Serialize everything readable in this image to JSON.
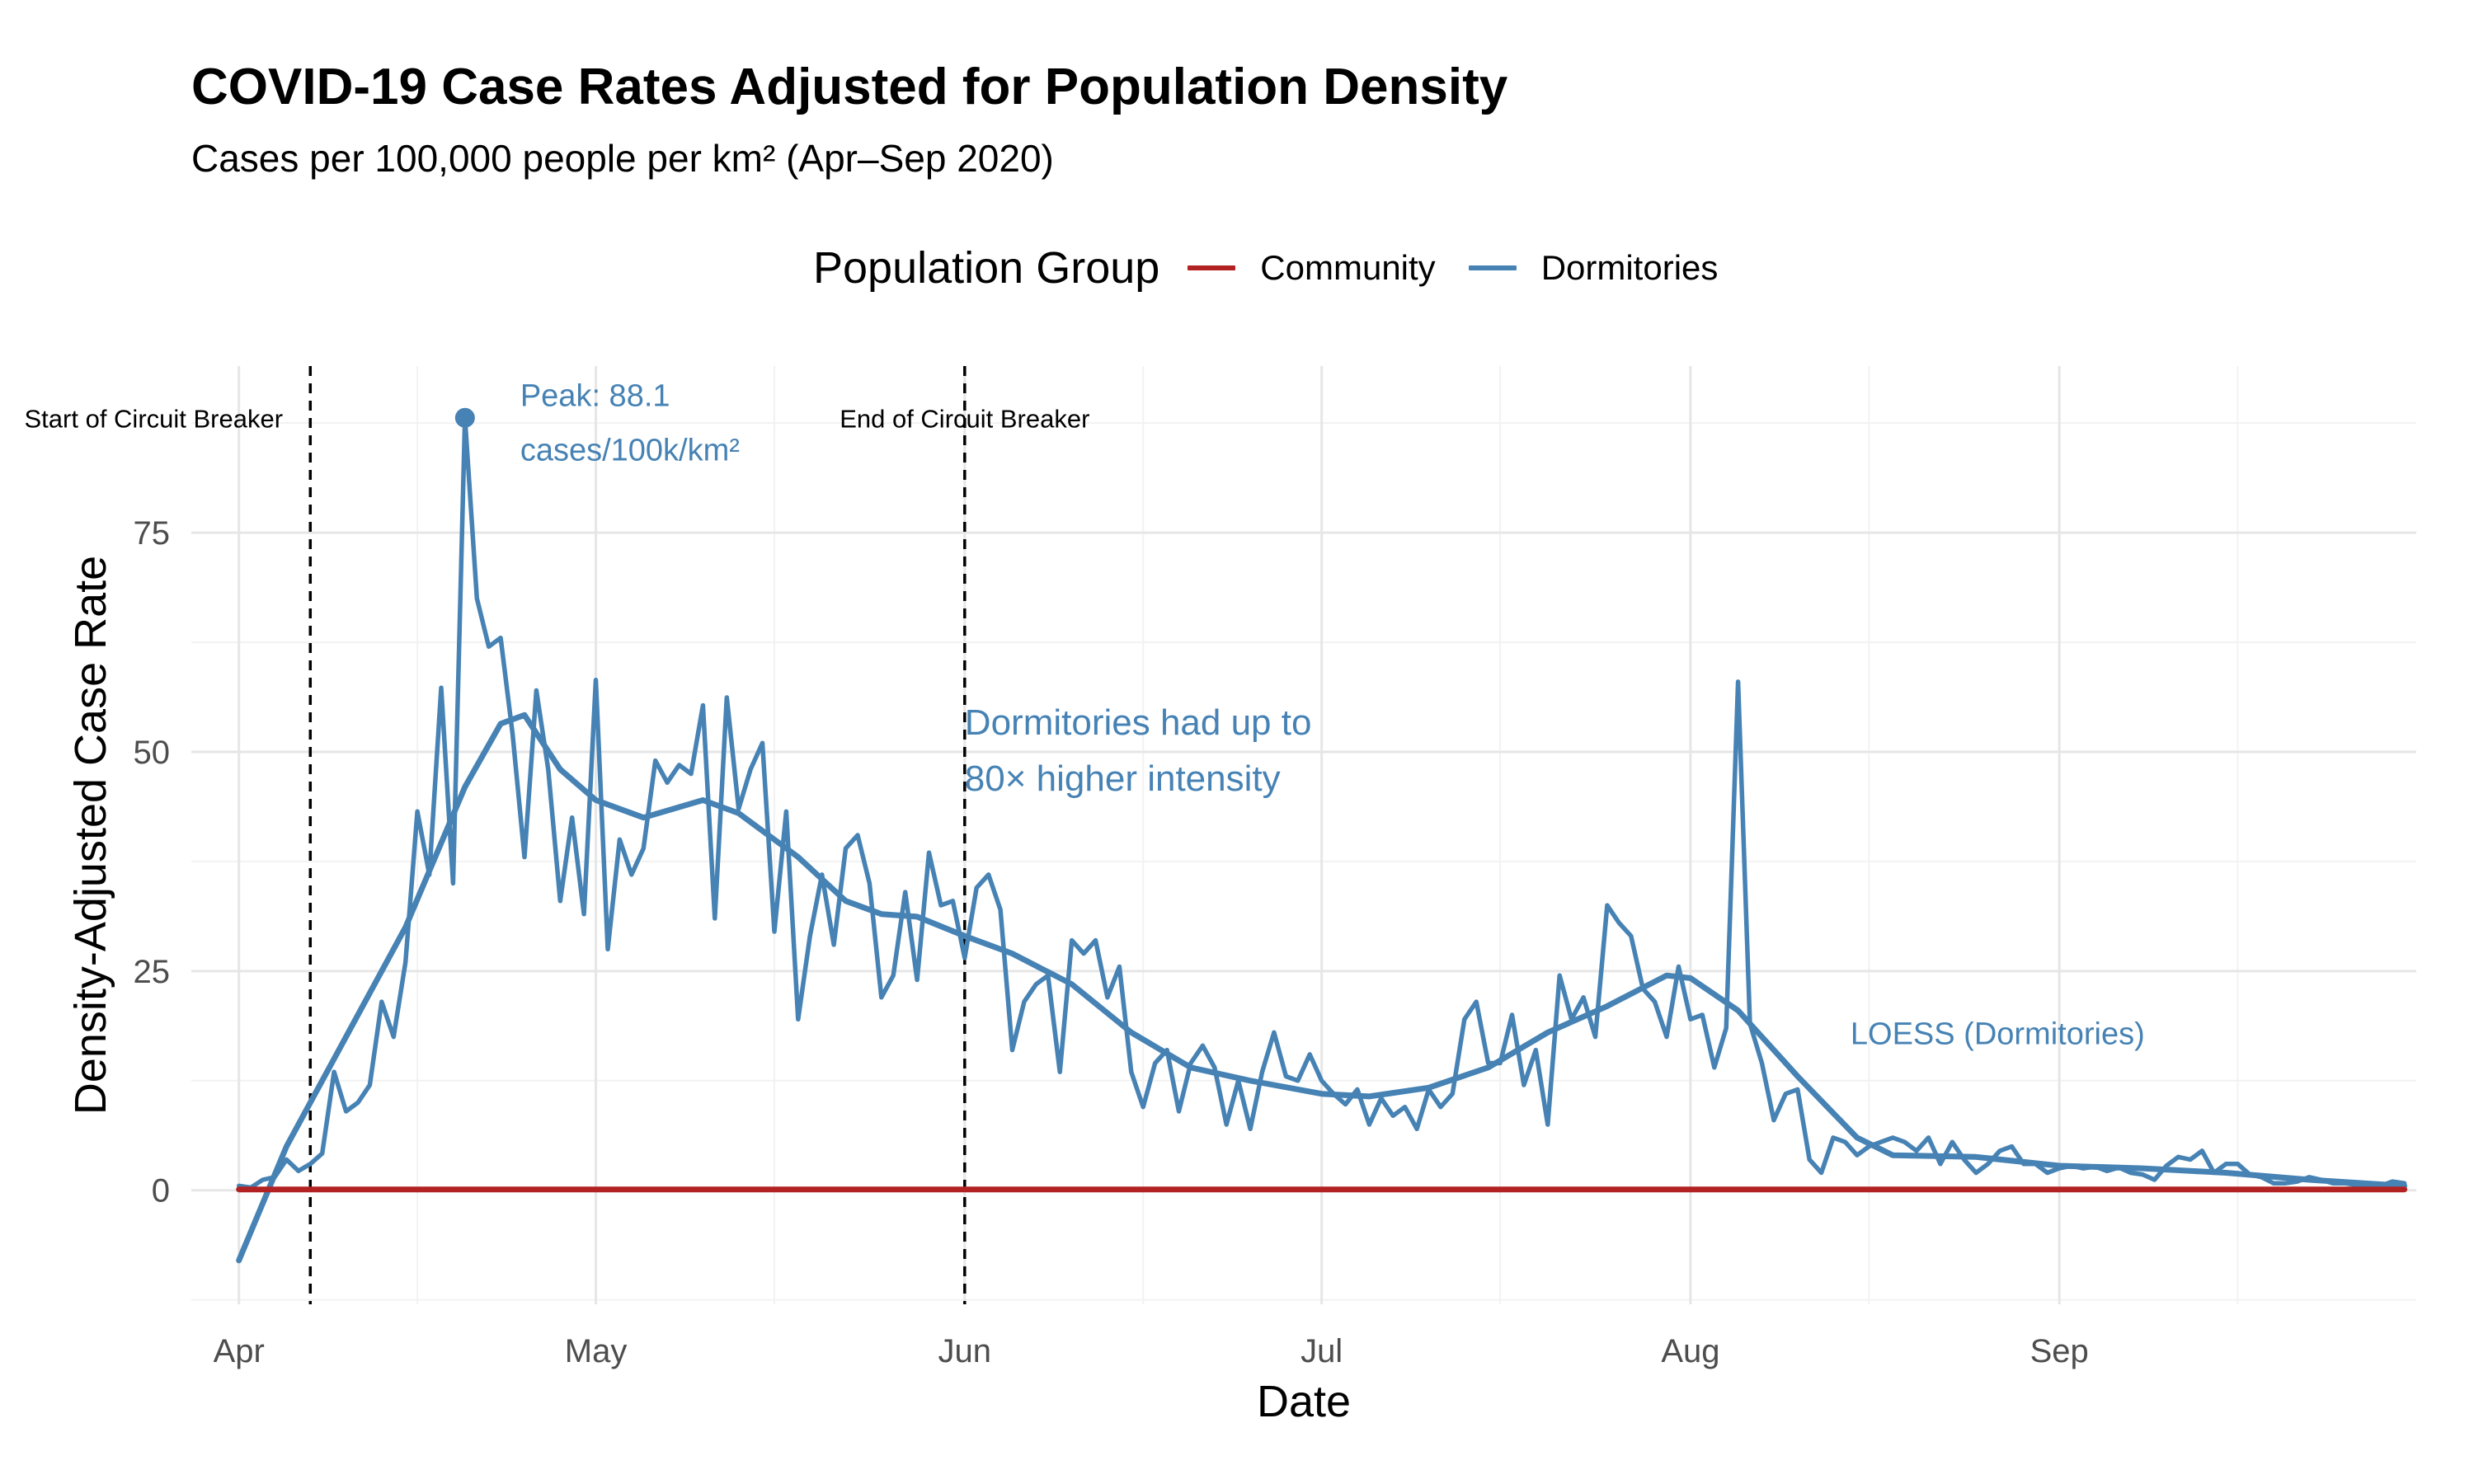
{
  "title": "COVID-19 Case Rates Adjusted for Population Density",
  "subtitle": "Cases per 100,000 people per km² (Apr–Sep 2020)",
  "legend": {
    "title": "Population Group",
    "items": [
      {
        "label": "Community",
        "color": "#B22222"
      },
      {
        "label": "Dormitories",
        "color": "#4682B4"
      }
    ]
  },
  "chart_data": {
    "type": "line",
    "title": "COVID-19 Case Rates Adjusted for Population Density",
    "subtitle": "Cases per 100,000 people per km² (Apr–Sep 2020)",
    "xlabel": "Date",
    "ylabel": "Density-Adjusted Case Rate",
    "xlim": [
      "2020-03-28",
      "2020-10-01"
    ],
    "ylim": [
      -13,
      94
    ],
    "x_ticks": [
      {
        "date": "2020-04-01",
        "label": "Apr"
      },
      {
        "date": "2020-05-01",
        "label": "May"
      },
      {
        "date": "2020-06-01",
        "label": "Jun"
      },
      {
        "date": "2020-07-01",
        "label": "Jul"
      },
      {
        "date": "2020-08-01",
        "label": "Aug"
      },
      {
        "date": "2020-09-01",
        "label": "Sep"
      }
    ],
    "y_ticks": [
      0,
      25,
      50,
      75
    ],
    "grid": true,
    "legend_position": "top",
    "series": [
      {
        "name": "Community",
        "color": "#B22222",
        "points": [
          [
            "2020-04-01",
            0.1
          ],
          [
            "2020-09-30",
            0.1
          ]
        ]
      },
      {
        "name": "Dormitories",
        "color": "#4682B4",
        "points": [
          [
            "2020-04-01",
            0.5
          ],
          [
            "2020-04-02",
            0.3
          ],
          [
            "2020-04-03",
            1.2
          ],
          [
            "2020-04-04",
            1.5
          ],
          [
            "2020-04-05",
            3.5
          ],
          [
            "2020-04-06",
            2.2
          ],
          [
            "2020-04-07",
            3.0
          ],
          [
            "2020-04-08",
            4.2
          ],
          [
            "2020-04-09",
            13.5
          ],
          [
            "2020-04-10",
            9.0
          ],
          [
            "2020-04-11",
            10.0
          ],
          [
            "2020-04-12",
            12.0
          ],
          [
            "2020-04-13",
            21.5
          ],
          [
            "2020-04-14",
            17.5
          ],
          [
            "2020-04-15",
            26.0
          ],
          [
            "2020-04-16",
            43.2
          ],
          [
            "2020-04-17",
            36.0
          ],
          [
            "2020-04-18",
            57.3
          ],
          [
            "2020-04-19",
            35.0
          ],
          [
            "2020-04-20",
            88.1
          ],
          [
            "2020-04-21",
            67.5
          ],
          [
            "2020-04-22",
            62.0
          ],
          [
            "2020-04-23",
            63.0
          ],
          [
            "2020-04-24",
            52.0
          ],
          [
            "2020-04-25",
            38.0
          ],
          [
            "2020-04-26",
            57.0
          ],
          [
            "2020-04-27",
            48.0
          ],
          [
            "2020-04-28",
            33.0
          ],
          [
            "2020-04-29",
            42.5
          ],
          [
            "2020-04-30",
            31.5
          ],
          [
            "2020-05-01",
            58.2
          ],
          [
            "2020-05-02",
            27.5
          ],
          [
            "2020-05-03",
            40.0
          ],
          [
            "2020-05-04",
            36.0
          ],
          [
            "2020-05-05",
            39.0
          ],
          [
            "2020-05-06",
            49.0
          ],
          [
            "2020-05-07",
            46.5
          ],
          [
            "2020-05-08",
            48.5
          ],
          [
            "2020-05-09",
            47.5
          ],
          [
            "2020-05-10",
            55.3
          ],
          [
            "2020-05-11",
            31.0
          ],
          [
            "2020-05-12",
            56.2
          ],
          [
            "2020-05-13",
            43.5
          ],
          [
            "2020-05-14",
            48.0
          ],
          [
            "2020-05-15",
            51.0
          ],
          [
            "2020-05-16",
            29.5
          ],
          [
            "2020-05-17",
            43.2
          ],
          [
            "2020-05-18",
            19.5
          ],
          [
            "2020-05-19",
            29.0
          ],
          [
            "2020-05-20",
            36.0
          ],
          [
            "2020-05-21",
            28.0
          ],
          [
            "2020-05-22",
            39.0
          ],
          [
            "2020-05-23",
            40.5
          ],
          [
            "2020-05-24",
            35.0
          ],
          [
            "2020-05-25",
            22.0
          ],
          [
            "2020-05-26",
            24.5
          ],
          [
            "2020-05-27",
            34.0
          ],
          [
            "2020-05-28",
            24.0
          ],
          [
            "2020-05-29",
            38.5
          ],
          [
            "2020-05-30",
            32.5
          ],
          [
            "2020-05-31",
            33.0
          ],
          [
            "2020-06-01",
            26.5
          ],
          [
            "2020-06-02",
            34.5
          ],
          [
            "2020-06-03",
            36.0
          ],
          [
            "2020-06-04",
            32.0
          ],
          [
            "2020-06-05",
            16.0
          ],
          [
            "2020-06-06",
            21.5
          ],
          [
            "2020-06-07",
            23.5
          ],
          [
            "2020-06-08",
            24.5
          ],
          [
            "2020-06-09",
            13.5
          ],
          [
            "2020-06-10",
            28.5
          ],
          [
            "2020-06-11",
            27.0
          ],
          [
            "2020-06-12",
            28.5
          ],
          [
            "2020-06-13",
            22.0
          ],
          [
            "2020-06-14",
            25.5
          ],
          [
            "2020-06-15",
            13.5
          ],
          [
            "2020-06-16",
            9.5
          ],
          [
            "2020-06-17",
            14.5
          ],
          [
            "2020-06-18",
            16.0
          ],
          [
            "2020-06-19",
            9.0
          ],
          [
            "2020-06-20",
            14.5
          ],
          [
            "2020-06-21",
            16.5
          ],
          [
            "2020-06-22",
            14.0
          ],
          [
            "2020-06-23",
            7.5
          ],
          [
            "2020-06-24",
            12.5
          ],
          [
            "2020-06-25",
            7.0
          ],
          [
            "2020-06-26",
            13.5
          ],
          [
            "2020-06-27",
            18.0
          ],
          [
            "2020-06-28",
            13.0
          ],
          [
            "2020-06-29",
            12.5
          ],
          [
            "2020-06-30",
            15.5
          ],
          [
            "2020-07-01",
            12.5
          ],
          [
            "2020-07-02",
            11.0
          ],
          [
            "2020-07-03",
            9.8
          ],
          [
            "2020-07-04",
            11.5
          ],
          [
            "2020-07-05",
            7.5
          ],
          [
            "2020-07-06",
            10.5
          ],
          [
            "2020-07-07",
            8.5
          ],
          [
            "2020-07-08",
            9.5
          ],
          [
            "2020-07-09",
            7.0
          ],
          [
            "2020-07-10",
            11.5
          ],
          [
            "2020-07-11",
            9.5
          ],
          [
            "2020-07-12",
            11.0
          ],
          [
            "2020-07-13",
            19.5
          ],
          [
            "2020-07-14",
            21.5
          ],
          [
            "2020-07-15",
            14.5
          ],
          [
            "2020-07-16",
            14.5
          ],
          [
            "2020-07-17",
            20.0
          ],
          [
            "2020-07-18",
            12.0
          ],
          [
            "2020-07-19",
            16.0
          ],
          [
            "2020-07-20",
            7.5
          ],
          [
            "2020-07-21",
            24.5
          ],
          [
            "2020-07-22",
            19.5
          ],
          [
            "2020-07-23",
            22.0
          ],
          [
            "2020-07-24",
            17.5
          ],
          [
            "2020-07-25",
            32.5
          ],
          [
            "2020-07-26",
            30.5
          ],
          [
            "2020-07-27",
            29.0
          ],
          [
            "2020-07-28",
            23.0
          ],
          [
            "2020-07-29",
            21.5
          ],
          [
            "2020-07-30",
            17.5
          ],
          [
            "2020-07-31",
            25.5
          ],
          [
            "2020-08-01",
            19.5
          ],
          [
            "2020-08-02",
            20.0
          ],
          [
            "2020-08-03",
            14.0
          ],
          [
            "2020-08-04",
            18.5
          ],
          [
            "2020-08-05",
            58.0
          ],
          [
            "2020-08-06",
            19.0
          ],
          [
            "2020-08-07",
            14.5
          ],
          [
            "2020-08-08",
            8.0
          ],
          [
            "2020-08-09",
            11.0
          ],
          [
            "2020-08-10",
            11.5
          ],
          [
            "2020-08-11",
            3.5
          ],
          [
            "2020-08-12",
            2.0
          ],
          [
            "2020-08-13",
            6.0
          ],
          [
            "2020-08-14",
            5.5
          ],
          [
            "2020-08-15",
            4.0
          ],
          [
            "2020-08-16",
            5.0
          ],
          [
            "2020-08-17",
            5.5
          ],
          [
            "2020-08-18",
            6.0
          ],
          [
            "2020-08-19",
            5.5
          ],
          [
            "2020-08-20",
            4.5
          ],
          [
            "2020-08-21",
            6.0
          ],
          [
            "2020-08-22",
            3.0
          ],
          [
            "2020-08-23",
            5.5
          ],
          [
            "2020-08-24",
            3.5
          ],
          [
            "2020-08-25",
            2.0
          ],
          [
            "2020-08-26",
            3.0
          ],
          [
            "2020-08-27",
            4.5
          ],
          [
            "2020-08-28",
            5.0
          ],
          [
            "2020-08-29",
            3.0
          ],
          [
            "2020-08-30",
            3.0
          ],
          [
            "2020-08-31",
            2.0
          ],
          [
            "2020-09-01",
            2.5
          ],
          [
            "2020-09-02",
            2.8
          ],
          [
            "2020-09-03",
            2.5
          ],
          [
            "2020-09-04",
            2.7
          ],
          [
            "2020-09-05",
            2.2
          ],
          [
            "2020-09-06",
            2.6
          ],
          [
            "2020-09-07",
            2.0
          ],
          [
            "2020-09-08",
            1.8
          ],
          [
            "2020-09-09",
            1.2
          ],
          [
            "2020-09-10",
            2.8
          ],
          [
            "2020-09-11",
            3.8
          ],
          [
            "2020-09-12",
            3.5
          ],
          [
            "2020-09-13",
            4.5
          ],
          [
            "2020-09-14",
            2.0
          ],
          [
            "2020-09-15",
            3.0
          ],
          [
            "2020-09-16",
            3.0
          ],
          [
            "2020-09-17",
            1.8
          ],
          [
            "2020-09-18",
            1.5
          ],
          [
            "2020-09-19",
            0.8
          ],
          [
            "2020-09-20",
            0.8
          ],
          [
            "2020-09-21",
            1.0
          ],
          [
            "2020-09-22",
            1.5
          ],
          [
            "2020-09-23",
            1.2
          ],
          [
            "2020-09-24",
            0.8
          ],
          [
            "2020-09-25",
            0.8
          ],
          [
            "2020-09-26",
            0.6
          ],
          [
            "2020-09-27",
            0.5
          ],
          [
            "2020-09-28",
            0.5
          ],
          [
            "2020-09-29",
            1.0
          ],
          [
            "2020-09-30",
            0.8
          ]
        ]
      },
      {
        "name": "LOESS (Dormitories)",
        "color": "#4682B4",
        "points": [
          [
            "2020-04-01",
            -8.0
          ],
          [
            "2020-04-05",
            5.0
          ],
          [
            "2020-04-10",
            17.5
          ],
          [
            "2020-04-15",
            30.0
          ],
          [
            "2020-04-20",
            46.0
          ],
          [
            "2020-04-23",
            53.2
          ],
          [
            "2020-04-25",
            54.2
          ],
          [
            "2020-04-28",
            48.0
          ],
          [
            "2020-05-01",
            44.5
          ],
          [
            "2020-05-05",
            42.5
          ],
          [
            "2020-05-10",
            44.5
          ],
          [
            "2020-05-13",
            43.0
          ],
          [
            "2020-05-18",
            38.0
          ],
          [
            "2020-05-22",
            33.0
          ],
          [
            "2020-05-25",
            31.5
          ],
          [
            "2020-05-28",
            31.2
          ],
          [
            "2020-06-01",
            29.0
          ],
          [
            "2020-06-05",
            27.0
          ],
          [
            "2020-06-10",
            23.5
          ],
          [
            "2020-06-15",
            18.0
          ],
          [
            "2020-06-20",
            14.0
          ],
          [
            "2020-06-25",
            12.5
          ],
          [
            "2020-07-01",
            11.0
          ],
          [
            "2020-07-05",
            10.7
          ],
          [
            "2020-07-10",
            11.7
          ],
          [
            "2020-07-15",
            14.0
          ],
          [
            "2020-07-20",
            18.0
          ],
          [
            "2020-07-25",
            21.0
          ],
          [
            "2020-07-30",
            24.5
          ],
          [
            "2020-08-01",
            24.2
          ],
          [
            "2020-08-05",
            20.5
          ],
          [
            "2020-08-10",
            13.0
          ],
          [
            "2020-08-15",
            6.0
          ],
          [
            "2020-08-18",
            4.0
          ],
          [
            "2020-08-25",
            3.8
          ],
          [
            "2020-09-01",
            2.8
          ],
          [
            "2020-09-08",
            2.5
          ],
          [
            "2020-09-15",
            2.0
          ],
          [
            "2020-09-22",
            1.2
          ],
          [
            "2020-09-30",
            0.5
          ]
        ]
      }
    ],
    "vlines": [
      {
        "date": "2020-04-07",
        "label": "Start of Circuit Breaker"
      },
      {
        "date": "2020-06-01",
        "label": "End of Circuit Breaker"
      }
    ],
    "annotations": [
      {
        "date": "2020-04-20",
        "y": 88.1,
        "lines": [
          "Peak: 88.1",
          "cases/100k/km²"
        ]
      },
      {
        "date": "2020-06-01",
        "y": 55,
        "lines": [
          "Dormitories had up to",
          "80× higher intensity"
        ]
      },
      {
        "date": "2020-08-15",
        "y": 18,
        "lines": [
          "LOESS (Dormitories)"
        ]
      }
    ]
  }
}
